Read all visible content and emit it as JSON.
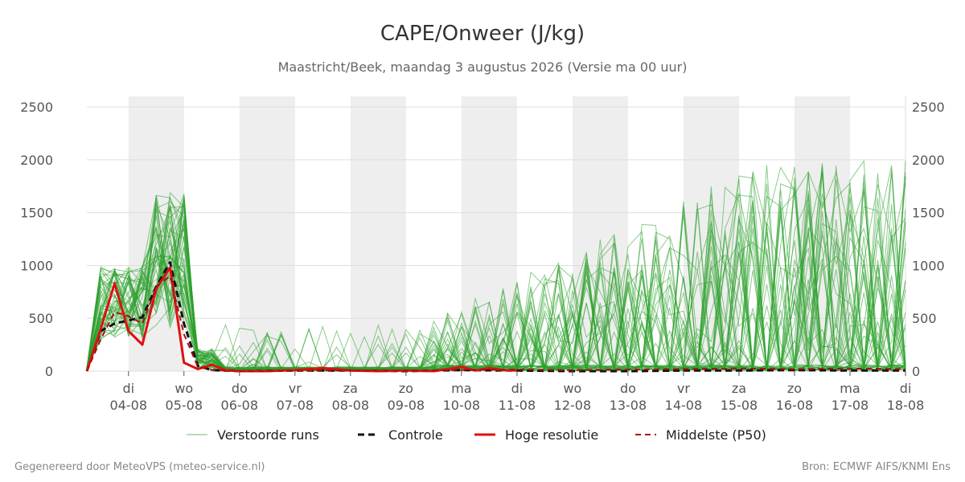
{
  "chart_data": {
    "type": "line",
    "title": "CAPE/Onweer (J/kg)",
    "subtitle": "Maastricht/Beek, maandag  3 augustus 2026 (Versie ma 00 uur)",
    "footer_left": "Gegenereerd door MeteoVPS (meteo-service.nl)",
    "footer_right": "Bron: ECMWF AIFS/KNMI Ens",
    "ylim": [
      0,
      2600
    ],
    "yticks": [
      0,
      500,
      1000,
      1500,
      2000,
      2500
    ],
    "y_tick_labels": [
      "0",
      "500",
      "1000",
      "1500",
      "2000",
      "2500"
    ],
    "xlim": [
      -0.75,
      14.0
    ],
    "x_day_labels": [
      "di",
      "wo",
      "do",
      "vr",
      "za",
      "zo",
      "ma",
      "di",
      "wo",
      "do",
      "vr",
      "za",
      "zo",
      "ma",
      "di"
    ],
    "x_date_labels": [
      "04-08",
      "05-08",
      "06-08",
      "07-08",
      "08-08",
      "09-08",
      "10-08",
      "11-08",
      "12-08",
      "13-08",
      "14-08",
      "15-08",
      "16-08",
      "17-08",
      "18-08"
    ],
    "night_bands": [
      [
        0,
        1
      ],
      [
        2,
        3
      ],
      [
        4,
        5
      ],
      [
        6,
        7
      ],
      [
        8,
        9
      ],
      [
        10,
        11
      ],
      [
        12,
        13
      ]
    ],
    "grid": true,
    "legend_position": "bottom",
    "colors": {
      "ensemble": "#2ca02c",
      "control": "#111111",
      "high_res": "#dd1111",
      "median": "#aa1111",
      "night_band": "#eeeeee"
    },
    "legend": {
      "ensemble": "Verstoorde runs",
      "control": "Controle",
      "high_res": "Hoge resolutie",
      "median": "Middelste (P50)"
    },
    "series": [
      {
        "name": "Controle",
        "style": "dashed",
        "x": [
          -0.75,
          -0.5,
          -0.25,
          0,
          0.25,
          0.5,
          0.75,
          1,
          1.25,
          1.5,
          2,
          3,
          4,
          5,
          6,
          7,
          8,
          9,
          10,
          11,
          12,
          13,
          14
        ],
        "values": [
          0,
          380,
          450,
          480,
          510,
          800,
          1030,
          450,
          50,
          10,
          0,
          5,
          5,
          0,
          10,
          5,
          0,
          0,
          5,
          5,
          10,
          5,
          5
        ]
      },
      {
        "name": "Hoge resolutie",
        "style": "solid",
        "x": [
          -0.75,
          -0.5,
          -0.25,
          0,
          0.25,
          0.5,
          0.75,
          1,
          1.25,
          1.5,
          1.75,
          2,
          2.5,
          3,
          3.5,
          4,
          4.5,
          5,
          5.5,
          6,
          6.25,
          6.5,
          6.75,
          7
        ],
        "values": [
          0,
          400,
          830,
          380,
          250,
          780,
          980,
          80,
          20,
          60,
          10,
          0,
          0,
          10,
          30,
          5,
          0,
          5,
          0,
          40,
          5,
          30,
          10,
          5
        ]
      },
      {
        "name": "Middelste (P50)",
        "style": "dashed",
        "x": [
          -0.75,
          -0.5,
          -0.25,
          0,
          0.25,
          0.5,
          0.75,
          1,
          1.25,
          1.5,
          2,
          3,
          4,
          5,
          6,
          7,
          8,
          9,
          10,
          11,
          12,
          13,
          14
        ],
        "values": [
          0,
          300,
          560,
          520,
          450,
          800,
          900,
          350,
          40,
          10,
          0,
          5,
          5,
          5,
          10,
          15,
          10,
          15,
          20,
          25,
          20,
          25,
          20
        ]
      }
    ]
  }
}
